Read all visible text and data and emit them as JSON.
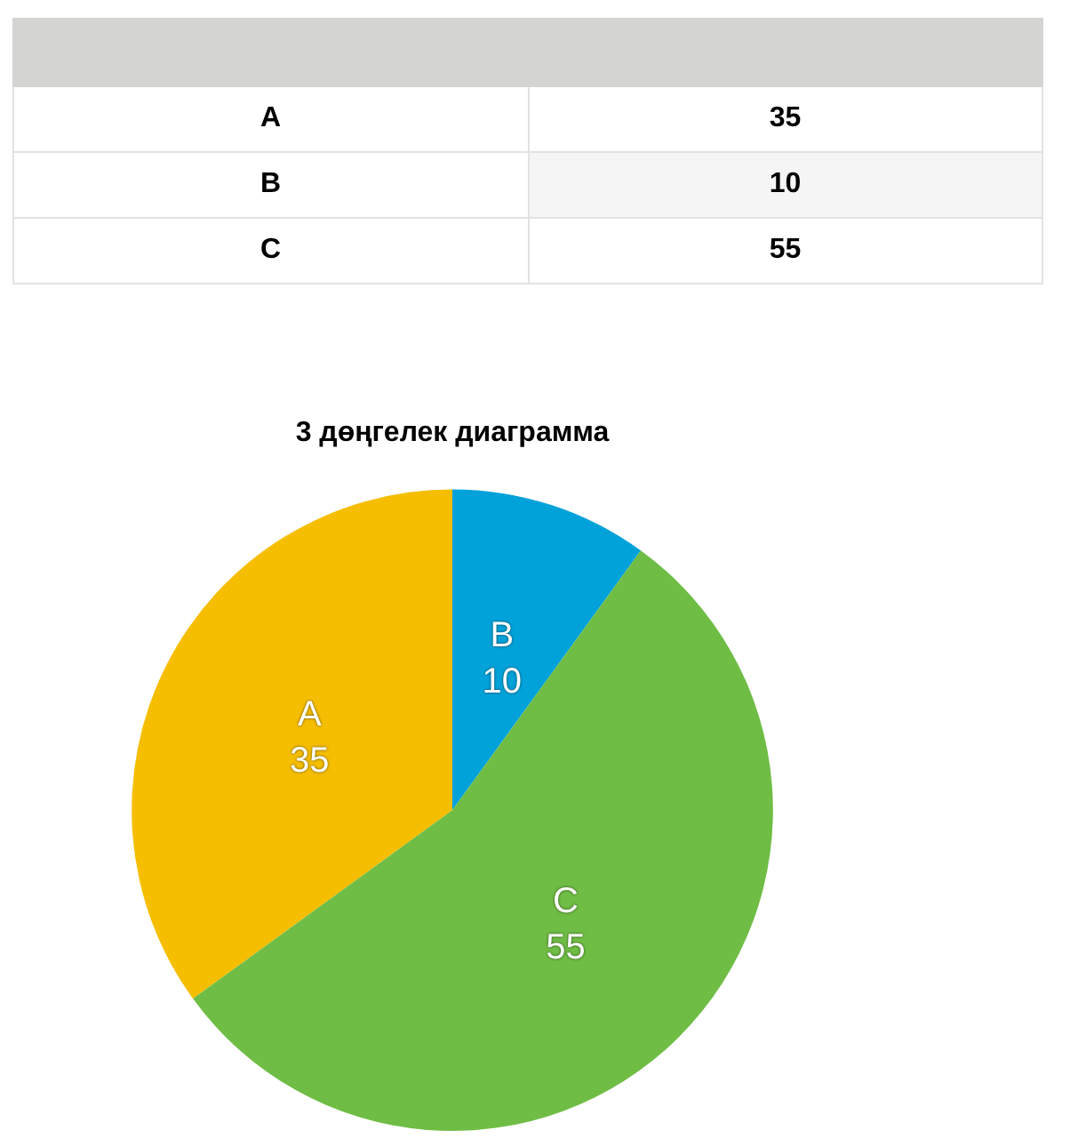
{
  "chart_data": {
    "type": "pie",
    "title": "3 дөңгелек диаграмма",
    "categories": [
      "A",
      "B",
      "C"
    ],
    "values": [
      35,
      10,
      55
    ],
    "value_labels": [
      "35",
      "10",
      "55"
    ],
    "colors": [
      "#f5be00",
      "#00a2d9",
      "#6fbd45"
    ],
    "legend": false
  }
}
